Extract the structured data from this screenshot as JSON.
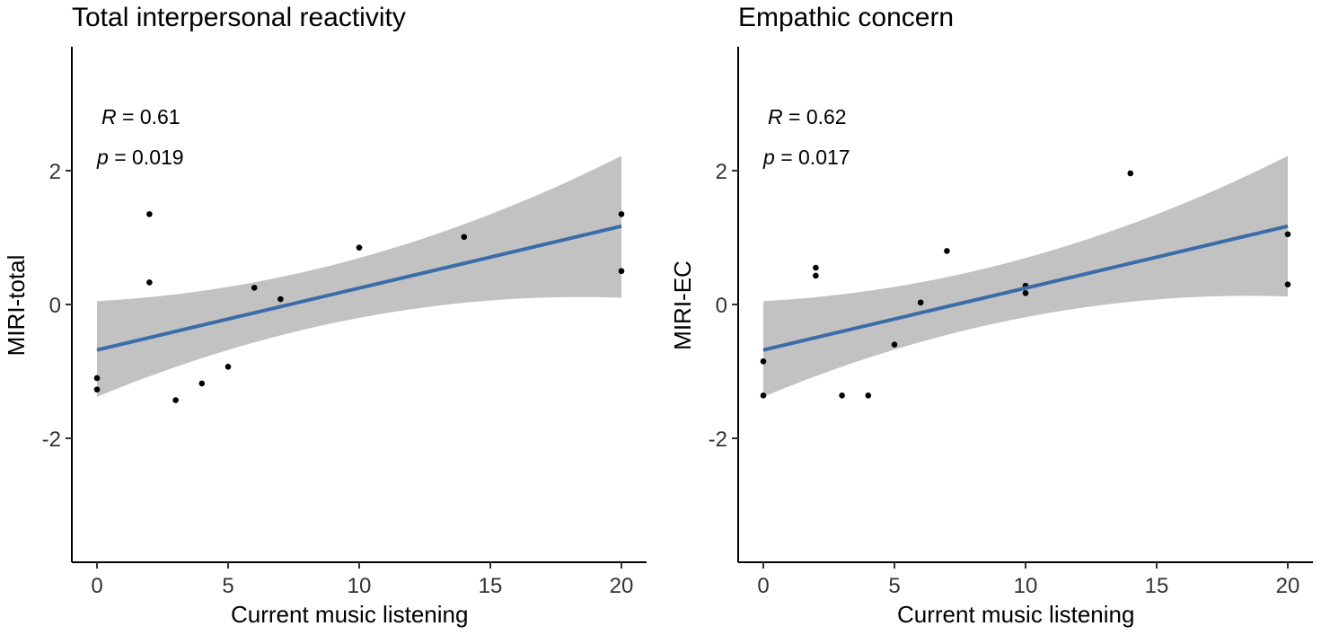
{
  "chart_data": [
    {
      "type": "scatter",
      "title": "Total interpersonal reactivity",
      "xlabel": "Current music listening",
      "ylabel": "MIRI-total",
      "xlim": [
        -1,
        21
      ],
      "ylim": [
        -3.85,
        3.85
      ],
      "x_ticks": [
        0,
        5,
        10,
        15,
        20
      ],
      "y_ticks": [
        -2,
        0,
        2
      ],
      "x_tick_labels": [
        "0",
        "5",
        "10",
        "15",
        "20"
      ],
      "y_tick_labels": [
        "-2",
        "0",
        "2"
      ],
      "points": {
        "x": [
          0,
          0,
          2,
          2,
          3,
          4,
          5,
          6,
          7,
          10,
          14,
          20,
          20
        ],
        "y": [
          -1.1,
          -1.27,
          1.35,
          0.33,
          -1.43,
          -1.18,
          -0.93,
          0.25,
          0.08,
          0.85,
          1.01,
          1.35,
          0.5
        ]
      },
      "fit": {
        "intercept": -0.68,
        "slope": 0.0925,
        "ci_lower_at_0": -1.38,
        "ci_upper_at_0": 0.05,
        "ci_lower_at_20": 0.1,
        "ci_upper_at_20": 2.22,
        "ci_curvature": 0.44
      },
      "annotation": {
        "r_symbol": "R",
        "r_value": "= 0.61",
        "p_symbol": "p",
        "p_value": "= 0.019"
      },
      "colors": {
        "line": "#3a6da8",
        "band": "#c2c2c2",
        "point": "#000000"
      }
    },
    {
      "type": "scatter",
      "title": "Empathic concern",
      "xlabel": "Current music listening",
      "ylabel": "MIRI-EC",
      "xlim": [
        -1,
        21
      ],
      "ylim": [
        -3.85,
        3.85
      ],
      "x_ticks": [
        0,
        5,
        10,
        15,
        20
      ],
      "y_ticks": [
        -2,
        0,
        2
      ],
      "x_tick_labels": [
        "0",
        "5",
        "10",
        "15",
        "20"
      ],
      "y_tick_labels": [
        "-2",
        "0",
        "2"
      ],
      "points": {
        "x": [
          0,
          0,
          2,
          2,
          3,
          4,
          5,
          6,
          7,
          10,
          10,
          14,
          20,
          20
        ],
        "y": [
          -0.85,
          -1.36,
          0.55,
          0.43,
          -1.36,
          -1.36,
          -0.6,
          0.03,
          0.8,
          0.17,
          0.28,
          1.96,
          1.05,
          0.3
        ]
      },
      "fit": {
        "intercept": -0.68,
        "slope": 0.0925,
        "ci_lower_at_0": -1.38,
        "ci_upper_at_0": 0.05,
        "ci_lower_at_20": 0.12,
        "ci_upper_at_20": 2.22,
        "ci_curvature": 0.44
      },
      "annotation": {
        "r_symbol": "R",
        "r_value": "= 0.62",
        "p_symbol": "p",
        "p_value": "= 0.017"
      },
      "colors": {
        "line": "#3a6da8",
        "band": "#c2c2c2",
        "point": "#000000"
      }
    }
  ]
}
